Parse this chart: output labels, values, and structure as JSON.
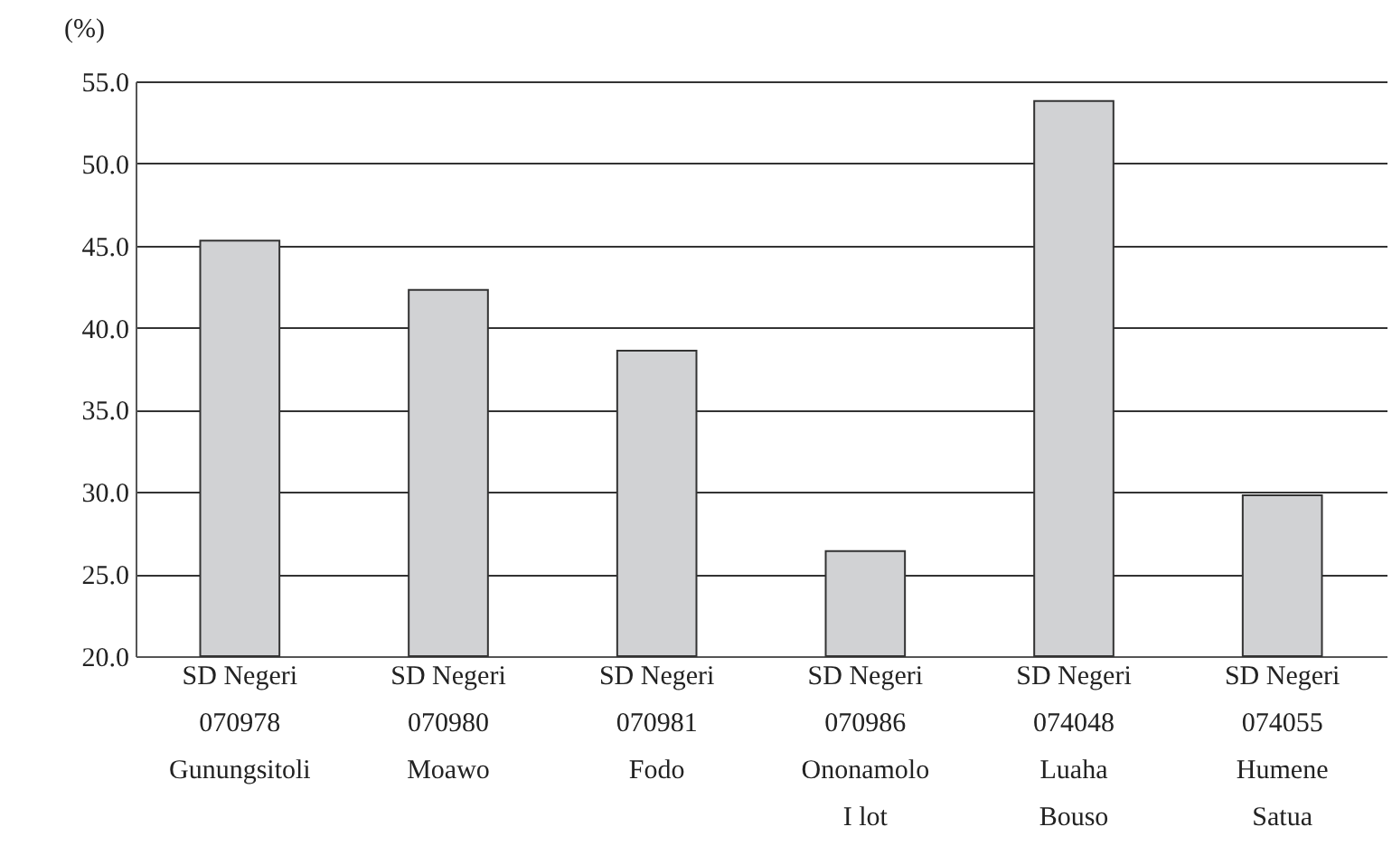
{
  "chart_data": {
    "type": "bar",
    "ylabel": "(%)",
    "categories": [
      "SD Negeri\n070978\nGunungsitoli",
      "SD Negeri\n070980\nMoawo",
      "SD Negeri\n070981\nFodo",
      "SD Negeri\n070986\nOnonamolo\nI lot",
      "SD Negeri\n074048\nLuaha\nBouso",
      "SD Negeri\n074055\nHumene\nSatua"
    ],
    "values": [
      45.3,
      42.3,
      38.6,
      26.4,
      53.8,
      29.8
    ],
    "color": "#d1d2d4",
    "ylim": [
      20,
      55
    ],
    "yticks": [
      {
        "value": 20,
        "label": "20.0"
      },
      {
        "value": 25,
        "label": "25.0"
      },
      {
        "value": 30,
        "label": "30.0"
      },
      {
        "value": 35,
        "label": "35.0"
      },
      {
        "value": 40,
        "label": "40.0"
      },
      {
        "value": 45,
        "label": "45.0"
      },
      {
        "value": 50,
        "label": "50.0"
      },
      {
        "value": 55,
        "label": "55.0"
      }
    ],
    "grid": "y"
  }
}
